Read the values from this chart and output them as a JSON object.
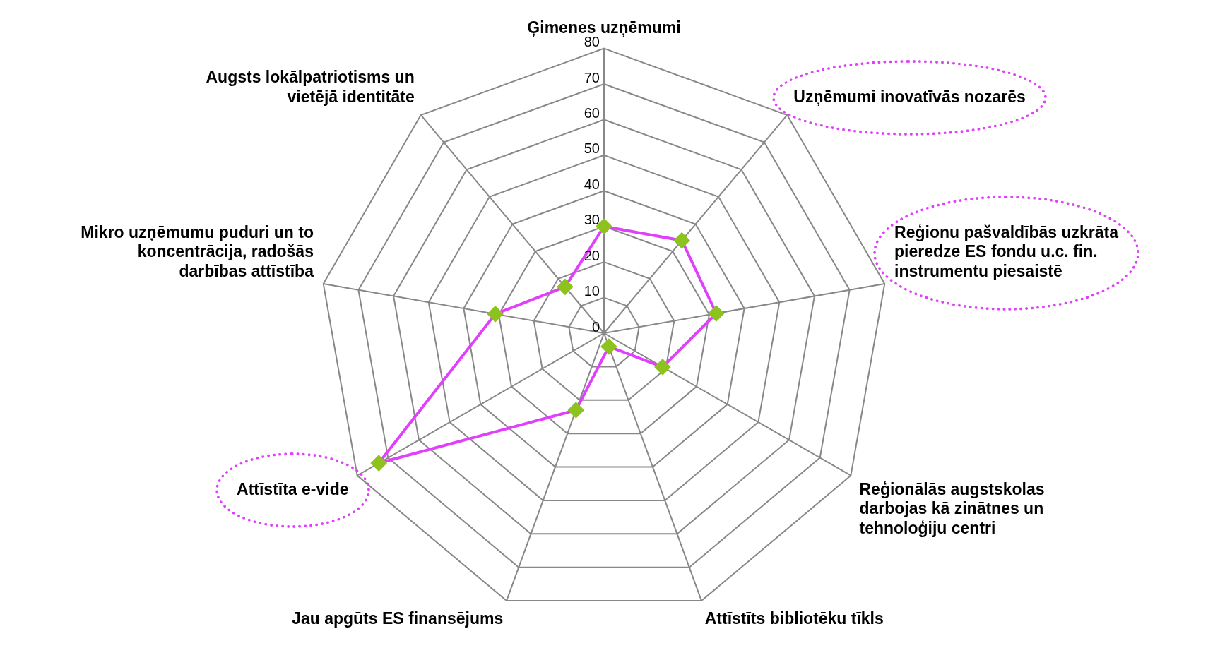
{
  "chart_data": {
    "type": "radar",
    "categories": [
      "Ģimenes uzņēmumi",
      "Uzņēmumi inovatīvās nozarēs",
      "Reģionu pašvaldībās uzkrāta\npieredze ES fondu u.c. fin.\ninstrumentu piesaistē",
      "Reģionālās augstskolas\ndarbojas kā zinātnes un\ntehnoloģiju centri",
      "Attīstīts bibliotēku tīkls",
      "Jau apgūts ES finansējums",
      "Attīstīta e-vide",
      "Mikro uzņēmumu puduri un to\nkoncentrācija, radošās\ndarbības attīstība",
      "Augsts lokālpatriotisms un\nvietējā identitāte"
    ],
    "series": [
      {
        "color": "#e040fb",
        "values": [
          30,
          34,
          32,
          19,
          4,
          23,
          73,
          31,
          17
        ]
      }
    ],
    "ylim": [
      0,
      80
    ],
    "yticks": [
      0,
      10,
      20,
      30,
      40,
      50,
      60,
      70,
      80
    ],
    "grid": true,
    "legend": false,
    "marker": "diamond",
    "line_style": "solid"
  }
}
